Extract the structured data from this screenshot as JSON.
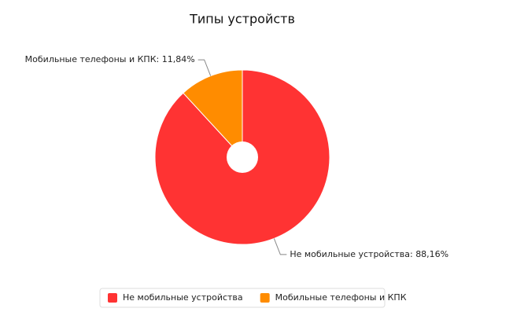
{
  "chart_data": {
    "type": "pie",
    "title": "Типы устройств",
    "categories": [
      "Не мобильные устройства",
      "Мобильные телефоны и КПК"
    ],
    "values": [
      88.16,
      11.84
    ],
    "value_labels": [
      "Не мобильные устройства: 88,16%",
      "Мобильные телефоны и КПК: 11,84%"
    ],
    "colors": [
      "#ff3333",
      "#ff8c00"
    ],
    "legend": "bottom"
  }
}
